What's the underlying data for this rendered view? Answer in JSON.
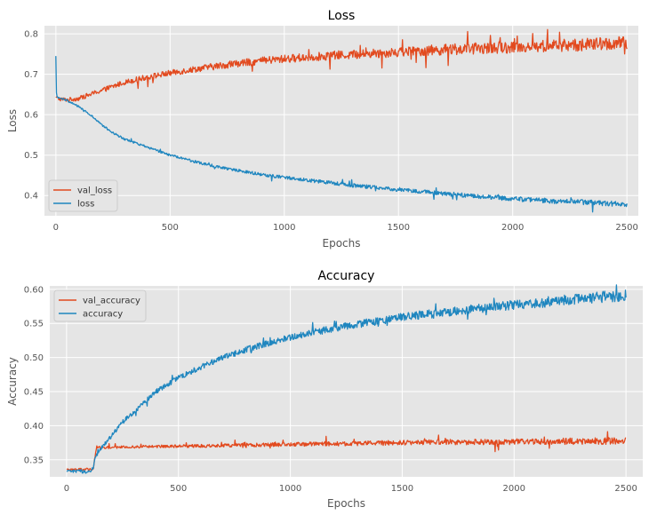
{
  "figure": {
    "background": "#ffffff",
    "axes_facecolor": "#e5e5e5",
    "grid_color": "#ffffff",
    "text_color": "#555555",
    "title_color": "#000000"
  },
  "chart_data": [
    {
      "type": "line",
      "title": "Loss",
      "xlabel": "Epochs",
      "ylabel": "Loss",
      "xlim": [
        -50,
        2550
      ],
      "ylim": [
        0.35,
        0.82
      ],
      "xticks": [
        0,
        500,
        1000,
        1500,
        2000,
        2500
      ],
      "yticks": [
        0.4,
        0.5,
        0.6,
        0.7,
        0.8
      ],
      "ytick_labels": [
        "0.4",
        "0.5",
        "0.6",
        "0.7",
        "0.8"
      ],
      "grid": true,
      "legend_position": "lower-left",
      "series": [
        {
          "name": "val_loss",
          "color": "#e24a1f",
          "x": [
            0,
            10,
            25,
            50,
            100,
            150,
            200,
            250,
            300,
            400,
            500,
            600,
            700,
            800,
            900,
            1000,
            1100,
            1200,
            1300,
            1400,
            1500,
            1600,
            1700,
            1800,
            1900,
            2000,
            2100,
            2200,
            2300,
            2400,
            2500
          ],
          "values": [
            0.644,
            0.64,
            0.638,
            0.637,
            0.64,
            0.65,
            0.66,
            0.67,
            0.68,
            0.693,
            0.703,
            0.712,
            0.72,
            0.727,
            0.733,
            0.738,
            0.742,
            0.746,
            0.749,
            0.752,
            0.755,
            0.758,
            0.761,
            0.763,
            0.765,
            0.767,
            0.769,
            0.771,
            0.773,
            0.775,
            0.777
          ],
          "noise": 0.01
        },
        {
          "name": "loss",
          "color": "#1f86bf",
          "x": [
            0,
            1,
            5,
            10,
            25,
            50,
            100,
            150,
            200,
            250,
            300,
            400,
            500,
            600,
            700,
            800,
            900,
            1000,
            1100,
            1200,
            1300,
            1400,
            1500,
            1600,
            1700,
            1800,
            1900,
            2000,
            2100,
            2200,
            2300,
            2400,
            2500
          ],
          "values": [
            0.745,
            0.66,
            0.645,
            0.642,
            0.64,
            0.635,
            0.62,
            0.6,
            0.575,
            0.555,
            0.54,
            0.52,
            0.5,
            0.485,
            0.472,
            0.462,
            0.452,
            0.445,
            0.438,
            0.432,
            0.425,
            0.42,
            0.415,
            0.41,
            0.405,
            0.4,
            0.396,
            0.392,
            0.389,
            0.386,
            0.384,
            0.381,
            0.379
          ],
          "noise": 0.004
        }
      ]
    },
    {
      "type": "line",
      "title": "Accuracy",
      "xlabel": "Epochs",
      "ylabel": "Accuracy",
      "xlim": [
        -75,
        2575
      ],
      "ylim": [
        0.325,
        0.605
      ],
      "xticks": [
        0,
        500,
        1000,
        1500,
        2000,
        2500
      ],
      "yticks": [
        0.35,
        0.4,
        0.45,
        0.5,
        0.55,
        0.6
      ],
      "ytick_labels": [
        "0.35",
        "0.40",
        "0.45",
        "0.50",
        "0.55",
        "0.60"
      ],
      "grid": true,
      "legend_position": "upper-left",
      "series": [
        {
          "name": "val_accuracy",
          "color": "#e24a1f",
          "x": [
            0,
            120,
            125,
            130,
            135,
            140,
            200,
            300,
            500,
            700,
            900,
            1100,
            1300,
            1500,
            1700,
            1900,
            2100,
            2300,
            2500
          ],
          "values": [
            0.336,
            0.336,
            0.35,
            0.36,
            0.37,
            0.368,
            0.368,
            0.369,
            0.37,
            0.371,
            0.372,
            0.373,
            0.374,
            0.375,
            0.376,
            0.376,
            0.377,
            0.377,
            0.378
          ],
          "noise": 0.003
        },
        {
          "name": "accuracy",
          "color": "#1f86bf",
          "x": [
            0,
            110,
            120,
            130,
            150,
            200,
            250,
            300,
            400,
            500,
            600,
            700,
            800,
            900,
            1000,
            1100,
            1200,
            1300,
            1400,
            1500,
            1600,
            1700,
            1800,
            1900,
            2000,
            2100,
            2200,
            2300,
            2400,
            2500
          ],
          "values": [
            0.333,
            0.333,
            0.34,
            0.355,
            0.365,
            0.385,
            0.405,
            0.42,
            0.45,
            0.47,
            0.486,
            0.5,
            0.511,
            0.521,
            0.53,
            0.537,
            0.543,
            0.549,
            0.554,
            0.559,
            0.563,
            0.567,
            0.571,
            0.574,
            0.577,
            0.58,
            0.583,
            0.586,
            0.589,
            0.591
          ],
          "noise": 0.005
        }
      ]
    }
  ]
}
